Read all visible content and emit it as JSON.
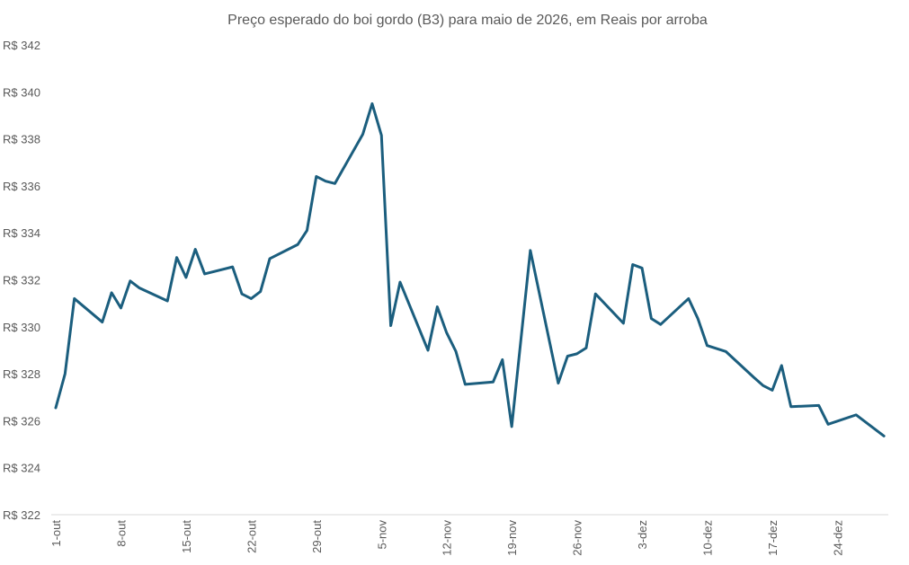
{
  "chart_data": {
    "type": "line",
    "title": "Preço esperado  do boi gordo (B3) para maio de 2026, em Reais por arroba",
    "xlabel": "",
    "ylabel": "",
    "ylim": [
      322,
      342
    ],
    "ytick_step": 2,
    "ytick_prefix": "R$ ",
    "grid": false,
    "legend": "none",
    "line_color": "#1b5e7e",
    "xticks": [
      "1-out",
      "8-out",
      "15-out",
      "22-out",
      "29-out",
      "5-nov",
      "12-nov",
      "19-nov",
      "26-nov",
      "3-dez",
      "10-dez",
      "17-dez",
      "24-dez"
    ],
    "series": [
      {
        "points": [
          [
            "1-out",
            326.55
          ],
          [
            "2-out",
            328.0
          ],
          [
            "3-out",
            331.2
          ],
          [
            "6-out",
            330.2
          ],
          [
            "7-out",
            331.45
          ],
          [
            "8-out",
            330.8
          ],
          [
            "9-out",
            331.95
          ],
          [
            "10-out",
            331.65
          ],
          [
            "13-out",
            331.1
          ],
          [
            "14-out",
            332.95
          ],
          [
            "15-out",
            332.1
          ],
          [
            "16-out",
            333.3
          ],
          [
            "17-out",
            332.25
          ],
          [
            "20-out",
            332.55
          ],
          [
            "21-out",
            331.4
          ],
          [
            "22-out",
            331.2
          ],
          [
            "23-out",
            331.5
          ],
          [
            "24-out",
            332.9
          ],
          [
            "27-out",
            333.5
          ],
          [
            "28-out",
            334.1
          ],
          [
            "29-out",
            336.4
          ],
          [
            "30-out",
            336.2
          ],
          [
            "31-out",
            336.1
          ],
          [
            "3-nov",
            338.2
          ],
          [
            "4-nov",
            339.5
          ],
          [
            "5-nov",
            338.15
          ],
          [
            "6-nov",
            330.05
          ],
          [
            "7-nov",
            331.9
          ],
          [
            "10-nov",
            329.0
          ],
          [
            "11-nov",
            330.85
          ],
          [
            "12-nov",
            329.75
          ],
          [
            "13-nov",
            328.95
          ],
          [
            "14-nov",
            327.55
          ],
          [
            "17-nov",
            327.65
          ],
          [
            "18-nov",
            328.6
          ],
          [
            "19-nov",
            325.75
          ],
          [
            "21-nov",
            333.25
          ],
          [
            "24-nov",
            327.6
          ],
          [
            "25-nov",
            328.75
          ],
          [
            "26-nov",
            328.85
          ],
          [
            "27-nov",
            329.1
          ],
          [
            "28-nov",
            331.4
          ],
          [
            "1-dez",
            330.15
          ],
          [
            "2-dez",
            332.65
          ],
          [
            "3-dez",
            332.5
          ],
          [
            "4-dez",
            330.35
          ],
          [
            "5-dez",
            330.1
          ],
          [
            "8-dez",
            331.2
          ],
          [
            "9-dez",
            330.35
          ],
          [
            "10-dez",
            329.2
          ],
          [
            "12-dez",
            328.95
          ],
          [
            "15-dez",
            327.85
          ],
          [
            "16-dez",
            327.5
          ],
          [
            "17-dez",
            327.3
          ],
          [
            "18-dez",
            328.35
          ],
          [
            "19-dez",
            326.6
          ],
          [
            "22-dez",
            326.65
          ],
          [
            "23-dez",
            325.85
          ],
          [
            "26-dez",
            326.25
          ],
          [
            "29-dez",
            325.35
          ]
        ]
      }
    ]
  }
}
